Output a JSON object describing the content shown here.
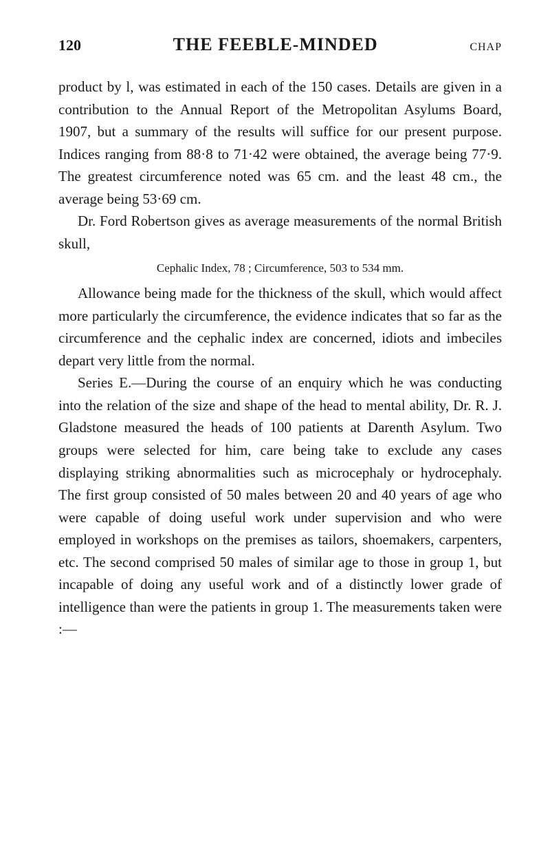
{
  "header": {
    "pageNumber": "120",
    "bookTitle": "THE FEEBLE-MINDED",
    "chapterLabel": "CHAP"
  },
  "paragraphs": {
    "p1": "product by l, was estimated in each of the 150 cases. Details are given in a contribution to the Annual Report of the Metropolitan Asylums Board, 1907, but a summary of the results will suffice for our present purpose. Indices ranging from 88·8 to 71·42 were obtained, the average being 77·9. The greatest circumference noted was 65 cm. and the least 48 cm., the average being 53·69 cm.",
    "p2": "Dr. Ford Robertson gives as average measurements of the normal British skull,",
    "cephalic": "Cephalic Index, 78 ; Circumference, 503 to 534 mm.",
    "p3": "Allowance being made for the thickness of the skull, which would affect more particularly the circumference, the evidence indicates that so far as the circumference and the cephalic index are concerned, idiots and imbeciles depart very little from the normal.",
    "p4": "Series E.—During the course of an enquiry which he was conducting into the relation of the size and shape of the head to mental ability, Dr. R. J. Gladstone measured the heads of 100 patients at Darenth Asylum. Two groups were selected for him, care being take to exclude any cases displaying striking abnormalities such as microcephaly or hydrocephaly. The first group consisted of 50 males between 20 and 40 years of age who were capable of doing useful work under supervision and who were employed in workshops on the premises as tailors, shoemakers, carpenters, etc. The second comprised 50 males of similar age to those in group 1, but incapable of doing any useful work and of a distinctly lower grade of intelligence than were the patients in group 1. The measurements taken were :—"
  },
  "styling": {
    "backgroundColor": "#ffffff",
    "textColor": "#1a1a1a",
    "fontFamily": "Georgia, Times New Roman, serif",
    "bodyFontSize": 21,
    "smallFontSize": 17,
    "headerFontSize": 26,
    "pageNumFontSize": 22,
    "lineHeight": 1.55,
    "pageWidth": 800,
    "pageHeight": 1260,
    "textIndent": 28
  }
}
